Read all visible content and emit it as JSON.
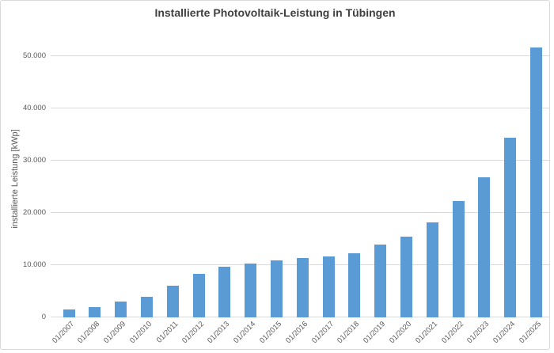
{
  "title": "Installierte Photovoltaik-Leistung in Tübingen",
  "y_axis_title": "installierte Leistung [kWp]",
  "colors": {
    "bar": "#5b9bd5",
    "gridline": "#d9d9d9",
    "tick_label": "#595959",
    "title": "#404040",
    "chart_border": "#d9d9d9",
    "background": "#ffffff"
  },
  "chart_data": {
    "type": "bar",
    "title": "Installierte Photovoltaik-Leistung in Tübingen",
    "xlabel": "",
    "ylabel": "installierte Leistung [kWp]",
    "categories": [
      "01/2007",
      "01/2008",
      "01/2009",
      "01/2010",
      "01/2011",
      "01/2012",
      "01/2013",
      "01/2014",
      "01/2015",
      "01/2016",
      "01/2017",
      "01/2018",
      "01/2019",
      "01/2020",
      "01/2021",
      "01/2022",
      "01/2023",
      "01/2024",
      "01/2025"
    ],
    "values": [
      1500,
      1900,
      3000,
      4000,
      6100,
      8300,
      9650,
      10250,
      10950,
      11400,
      11650,
      12350,
      13900,
      15450,
      18250,
      22200,
      26850,
      34400,
      51600
    ],
    "ylim": [
      0,
      52400
    ],
    "yticks": [
      {
        "value": 0,
        "label": "0"
      },
      {
        "value": 10000,
        "label": "10.000"
      },
      {
        "value": 20000,
        "label": "20.000"
      },
      {
        "value": 30000,
        "label": "30.000"
      },
      {
        "value": 40000,
        "label": "40.000"
      },
      {
        "value": 50000,
        "label": "50.000"
      }
    ],
    "grid": "horizontal",
    "legend": "none"
  }
}
